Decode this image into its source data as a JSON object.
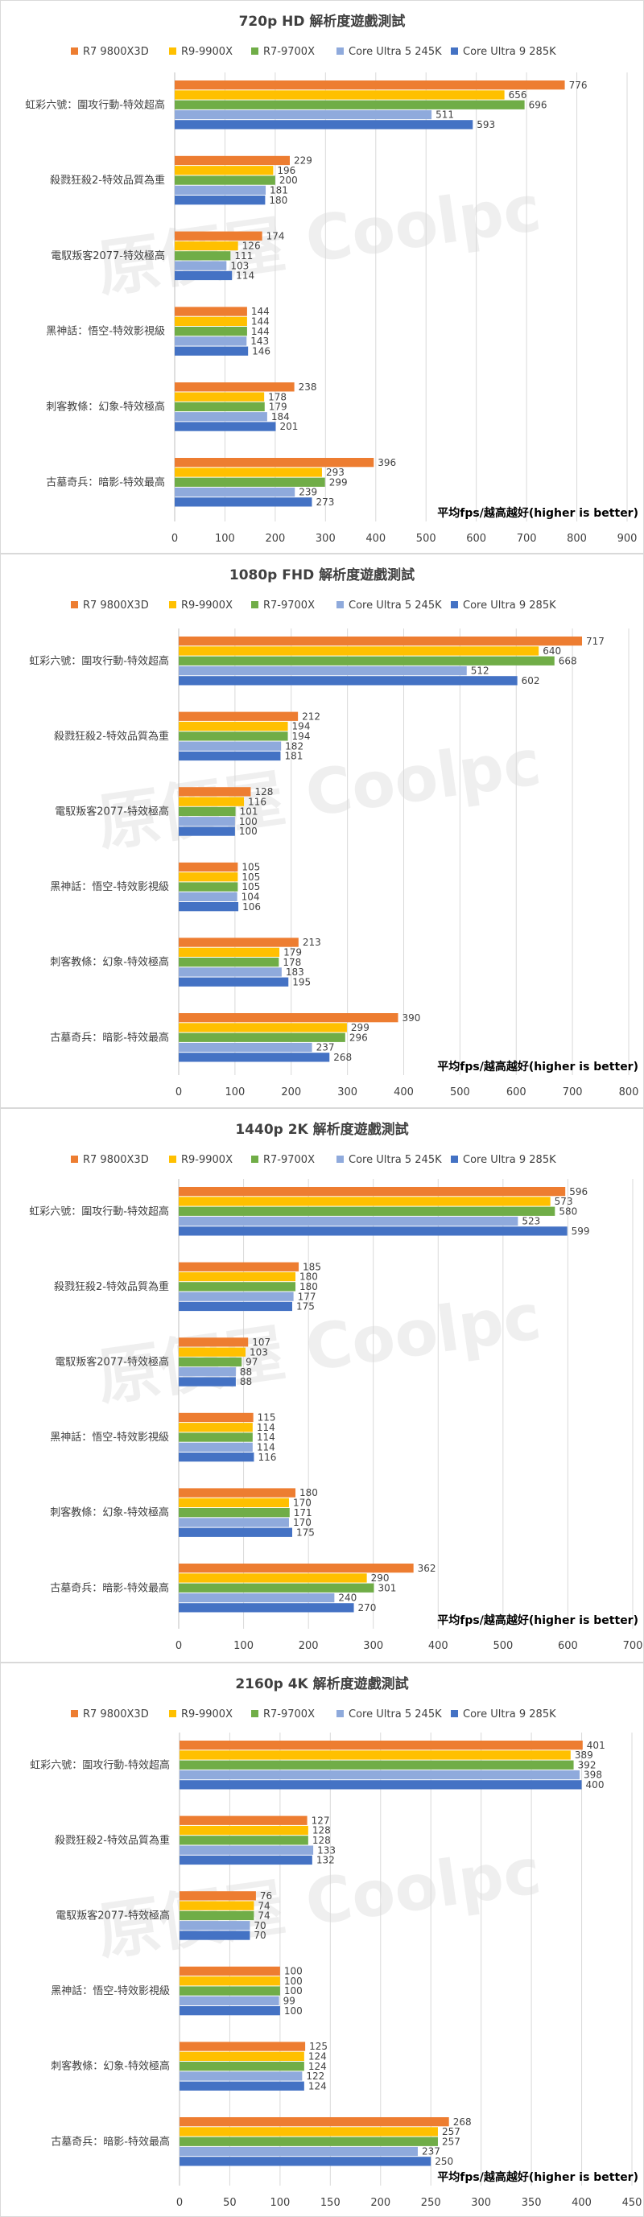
{
  "series_names": [
    "R7 9800X3D",
    "R9-9900X",
    "R7-9700X",
    "Core Ultra 5 245K",
    "Core Ultra 9 285K"
  ],
  "series_colors": [
    "#ED7D31",
    "#FFC000",
    "#70AD47",
    "#8FAADC",
    "#4472C4"
  ],
  "watermark": "原價屋 Coolpc",
  "chart_data": [
    {
      "type": "bar",
      "orientation": "horizontal",
      "title": "720p HD 解析度遊戲測試",
      "xlabel": "平均fps/越高越好(higher is better)",
      "xlim": [
        0,
        900
      ],
      "xticks": [
        0,
        100,
        200,
        300,
        400,
        500,
        600,
        700,
        800,
        900
      ],
      "grid": true,
      "legend": "top",
      "categories": [
        "虹彩六號：圍攻行動-特效超高",
        "殺戮狂殺2-特效品質為重",
        "電馭叛客2077-特效極高",
        "黑神話：悟空-特效影視級",
        "刺客教條：幻象-特效極高",
        "古墓奇兵：暗影-特效最高"
      ],
      "series": [
        {
          "name": "R7 9800X3D",
          "values": [
            776,
            229,
            174,
            144,
            238,
            396
          ]
        },
        {
          "name": "R9-9900X",
          "values": [
            656,
            196,
            126,
            144,
            178,
            293
          ]
        },
        {
          "name": "R7-9700X",
          "values": [
            696,
            200,
            111,
            144,
            179,
            299
          ]
        },
        {
          "name": "Core Ultra 5 245K",
          "values": [
            511,
            181,
            103,
            143,
            184,
            239
          ]
        },
        {
          "name": "Core Ultra 9 285K",
          "values": [
            593,
            180,
            114,
            146,
            201,
            273
          ]
        }
      ]
    },
    {
      "type": "bar",
      "orientation": "horizontal",
      "title": "1080p FHD 解析度遊戲測試",
      "xlabel": "平均fps/越高越好(higher is better)",
      "xlim": [
        0,
        800
      ],
      "xticks": [
        0,
        100,
        200,
        300,
        400,
        500,
        600,
        700,
        800
      ],
      "grid": true,
      "legend": "top",
      "categories": [
        "虹彩六號：圍攻行動-特效超高",
        "殺戮狂殺2-特效品質為重",
        "電馭叛客2077-特效極高",
        "黑神話：悟空-特效影視級",
        "刺客教條：幻象-特效極高",
        "古墓奇兵：暗影-特效最高"
      ],
      "series": [
        {
          "name": "R7 9800X3D",
          "values": [
            717,
            212,
            128,
            105,
            213,
            390
          ]
        },
        {
          "name": "R9-9900X",
          "values": [
            640,
            194,
            116,
            105,
            179,
            299
          ]
        },
        {
          "name": "R7-9700X",
          "values": [
            668,
            194,
            101,
            105,
            178,
            296
          ]
        },
        {
          "name": "Core Ultra 5 245K",
          "values": [
            512,
            182,
            100,
            104,
            183,
            237
          ]
        },
        {
          "name": "Core Ultra 9 285K",
          "values": [
            602,
            181,
            100,
            106,
            195,
            268
          ]
        }
      ]
    },
    {
      "type": "bar",
      "orientation": "horizontal",
      "title": "1440p 2K 解析度遊戲測試",
      "xlabel": "平均fps/越高越好(higher is better)",
      "xlim": [
        0,
        700
      ],
      "xticks": [
        0,
        100,
        200,
        300,
        400,
        500,
        600,
        700
      ],
      "grid": true,
      "legend": "top",
      "categories": [
        "虹彩六號：圍攻行動-特效超高",
        "殺戮狂殺2-特效品質為重",
        "電馭叛客2077-特效極高",
        "黑神話：悟空-特效影視級",
        "刺客教條：幻象-特效極高",
        "古墓奇兵：暗影-特效最高"
      ],
      "series": [
        {
          "name": "R7 9800X3D",
          "values": [
            596,
            185,
            107,
            115,
            180,
            362
          ]
        },
        {
          "name": "R9-9900X",
          "values": [
            573,
            180,
            103,
            114,
            170,
            290
          ]
        },
        {
          "name": "R7-9700X",
          "values": [
            580,
            180,
            97,
            114,
            171,
            301
          ]
        },
        {
          "name": "Core Ultra 5 245K",
          "values": [
            523,
            177,
            88,
            114,
            170,
            240
          ]
        },
        {
          "name": "Core Ultra 9 285K",
          "values": [
            599,
            175,
            88,
            116,
            175,
            270
          ]
        }
      ]
    },
    {
      "type": "bar",
      "orientation": "horizontal",
      "title": "2160p 4K 解析度遊戲測試",
      "xlabel": "平均fps/越高越好(higher is better)",
      "xlim": [
        0,
        450
      ],
      "xticks": [
        0,
        50,
        100,
        150,
        200,
        250,
        300,
        350,
        400,
        450
      ],
      "grid": true,
      "legend": "top",
      "categories": [
        "虹彩六號：圍攻行動-特效超高",
        "殺戮狂殺2-特效品質為重",
        "電馭叛客2077-特效極高",
        "黑神話：悟空-特效影視級",
        "刺客教條：幻象-特效極高",
        "古墓奇兵：暗影-特效最高"
      ],
      "series": [
        {
          "name": "R7 9800X3D",
          "values": [
            401,
            127,
            76,
            100,
            125,
            268
          ]
        },
        {
          "name": "R9-9900X",
          "values": [
            389,
            128,
            74,
            100,
            124,
            257
          ]
        },
        {
          "name": "R7-9700X",
          "values": [
            392,
            128,
            74,
            100,
            124,
            257
          ]
        },
        {
          "name": "Core Ultra 5 245K",
          "values": [
            398,
            133,
            70,
            99,
            122,
            237
          ]
        },
        {
          "name": "Core Ultra 9 285K",
          "values": [
            400,
            132,
            70,
            100,
            124,
            250
          ]
        }
      ]
    }
  ]
}
